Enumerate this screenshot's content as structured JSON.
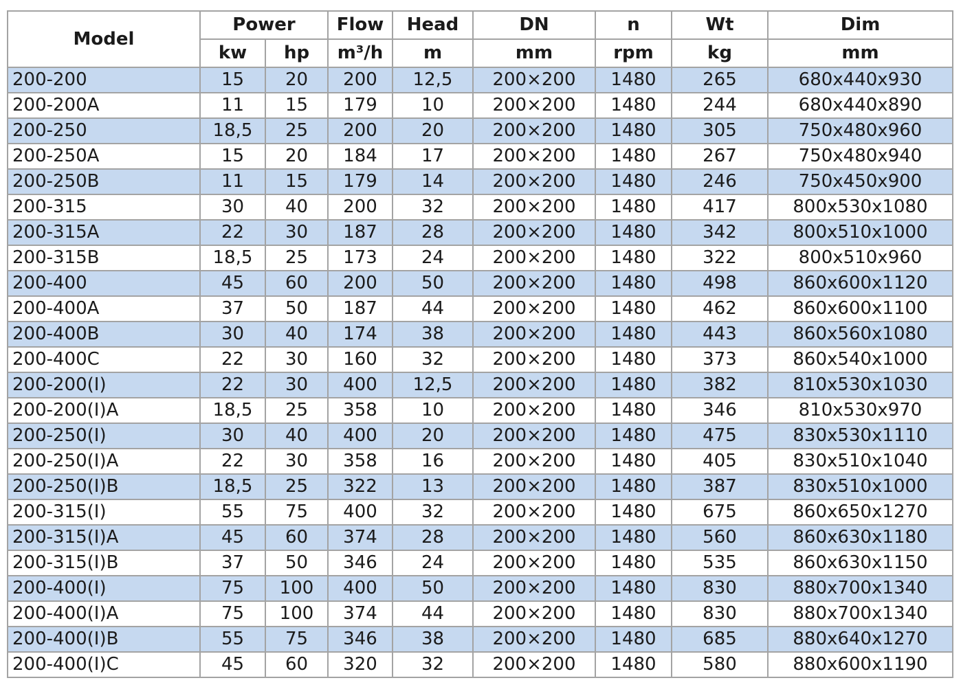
{
  "header": {
    "model": "Model",
    "power": "Power",
    "flow": "Flow",
    "head": "Head",
    "dn": "DN",
    "n": "n",
    "wt": "Wt",
    "dim": "Dim",
    "units": {
      "kw": "kw",
      "hp": "hp",
      "flow": "m³/h",
      "head": "m",
      "dn": "mm",
      "n": "rpm",
      "wt": "kg",
      "dim": "mm"
    }
  },
  "colors": {
    "stripe": "#c6d9f0",
    "border": "#a3a3a3"
  },
  "rows": [
    [
      "200-200",
      "15",
      "20",
      "200",
      "12,5",
      "200×200",
      "1480",
      "265",
      "680x440x930"
    ],
    [
      "200-200A",
      "11",
      "15",
      "179",
      "10",
      "200×200",
      "1480",
      "244",
      "680x440x890"
    ],
    [
      "200-250",
      "18,5",
      "25",
      "200",
      "20",
      "200×200",
      "1480",
      "305",
      "750x480x960"
    ],
    [
      "200-250A",
      "15",
      "20",
      "184",
      "17",
      "200×200",
      "1480",
      "267",
      "750x480x940"
    ],
    [
      "200-250B",
      "11",
      "15",
      "179",
      "14",
      "200×200",
      "1480",
      "246",
      "750x450x900"
    ],
    [
      "200-315",
      "30",
      "40",
      "200",
      "32",
      "200×200",
      "1480",
      "417",
      "800x530x1080"
    ],
    [
      "200-315A",
      "22",
      "30",
      "187",
      "28",
      "200×200",
      "1480",
      "342",
      "800x510x1000"
    ],
    [
      "200-315B",
      "18,5",
      "25",
      "173",
      "24",
      "200×200",
      "1480",
      "322",
      "800x510x960"
    ],
    [
      "200-400",
      "45",
      "60",
      "200",
      "50",
      "200×200",
      "1480",
      "498",
      "860x600x1120"
    ],
    [
      "200-400A",
      "37",
      "50",
      "187",
      "44",
      "200×200",
      "1480",
      "462",
      "860x600x1100"
    ],
    [
      "200-400B",
      "30",
      "40",
      "174",
      "38",
      "200×200",
      "1480",
      "443",
      "860x560x1080"
    ],
    [
      "200-400C",
      "22",
      "30",
      "160",
      "32",
      "200×200",
      "1480",
      "373",
      "860x540x1000"
    ],
    [
      "200-200(I)",
      "22",
      "30",
      "400",
      "12,5",
      "200×200",
      "1480",
      "382",
      "810x530x1030"
    ],
    [
      "200-200(I)A",
      "18,5",
      "25",
      "358",
      "10",
      "200×200",
      "1480",
      "346",
      "810x530x970"
    ],
    [
      "200-250(I)",
      "30",
      "40",
      "400",
      "20",
      "200×200",
      "1480",
      "475",
      "830x530x1110"
    ],
    [
      "200-250(I)A",
      "22",
      "30",
      "358",
      "16",
      "200×200",
      "1480",
      "405",
      "830x510x1040"
    ],
    [
      "200-250(I)B",
      "18,5",
      "25",
      "322",
      "13",
      "200×200",
      "1480",
      "387",
      "830x510x1000"
    ],
    [
      "200-315(I)",
      "55",
      "75",
      "400",
      "32",
      "200×200",
      "1480",
      "675",
      "860x650x1270"
    ],
    [
      "200-315(I)A",
      "45",
      "60",
      "374",
      "28",
      "200×200",
      "1480",
      "560",
      "860x630x1180"
    ],
    [
      "200-315(I)B",
      "37",
      "50",
      "346",
      "24",
      "200×200",
      "1480",
      "535",
      "860x630x1150"
    ],
    [
      "200-400(I)",
      "75",
      "100",
      "400",
      "50",
      "200×200",
      "1480",
      "830",
      "880x700x1340"
    ],
    [
      "200-400(I)A",
      "75",
      "100",
      "374",
      "44",
      "200×200",
      "1480",
      "830",
      "880x700x1340"
    ],
    [
      "200-400(I)B",
      "55",
      "75",
      "346",
      "38",
      "200×200",
      "1480",
      "685",
      "880x640x1270"
    ],
    [
      "200-400(I)C",
      "45",
      "60",
      "320",
      "32",
      "200×200",
      "1480",
      "580",
      "880x600x1190"
    ]
  ]
}
